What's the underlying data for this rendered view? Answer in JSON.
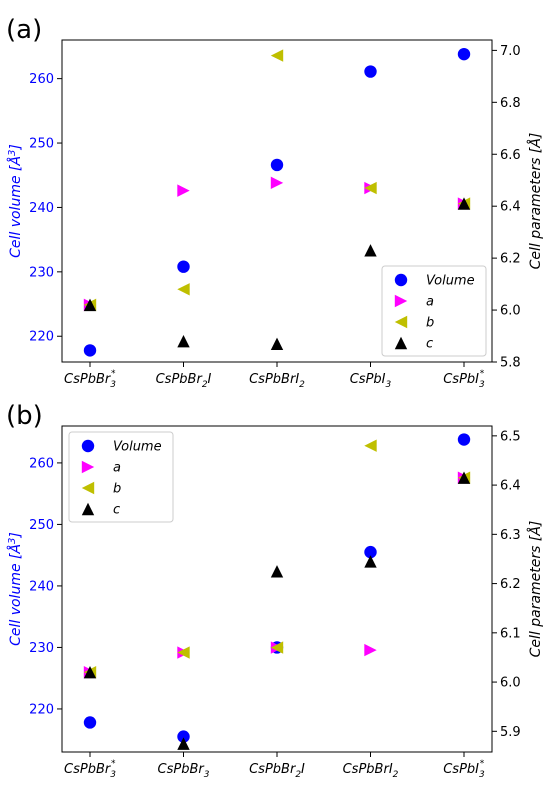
{
  "colors": {
    "volume": "#0000ff",
    "a": "#ff00ff",
    "b": "#bfbf00",
    "c": "#000000",
    "left_axis": "#0000ff",
    "right_axis": "#000000"
  },
  "chart_data": [
    {
      "type": "scatter",
      "panel_label": "(a)",
      "categories": [
        {
          "base": "CsPbBr",
          "sub": "3",
          "sup": "*"
        },
        {
          "base": "CsPbBr",
          "sub": "2",
          "tail": "I"
        },
        {
          "base": "CsPbBrI",
          "sub": "2"
        },
        {
          "base": "CsPbI",
          "sub": "3"
        },
        {
          "base": "CsPbI",
          "sub": "3",
          "sup": "*"
        }
      ],
      "ylabel_left": "Cell volume [Å³]",
      "ylabel_right": "Cell parameters [Å]",
      "ylim_left": [
        216.0,
        266.0
      ],
      "ylim_right": [
        5.8,
        7.04
      ],
      "yticks_left": [
        220,
        230,
        240,
        250,
        260
      ],
      "yticks_right": [
        5.8,
        6.0,
        6.2,
        6.4,
        6.6,
        6.8,
        7.0
      ],
      "legend_position": "bottom-right",
      "series": [
        {
          "name": "Volume",
          "axis": "left",
          "marker": "circle",
          "values": [
            217.8,
            230.8,
            246.6,
            261.1,
            263.8
          ]
        },
        {
          "name": "a",
          "axis": "right",
          "marker": "triangle-right",
          "values": [
            6.02,
            6.46,
            6.49,
            6.47,
            6.41
          ]
        },
        {
          "name": "b",
          "axis": "right",
          "marker": "triangle-left",
          "values": [
            6.02,
            6.08,
            6.98,
            6.47,
            6.41
          ]
        },
        {
          "name": "c",
          "axis": "right",
          "marker": "triangle-up",
          "values": [
            6.02,
            5.88,
            5.87,
            6.23,
            6.41
          ]
        }
      ]
    },
    {
      "type": "scatter",
      "panel_label": "(b)",
      "categories": [
        {
          "base": "CsPbBr",
          "sub": "3",
          "sup": "*"
        },
        {
          "base": "CsPbBr",
          "sub": "3"
        },
        {
          "base": "CsPbBr",
          "sub": "2",
          "tail": "I"
        },
        {
          "base": "CsPbBrI",
          "sub": "2"
        },
        {
          "base": "CsPbI",
          "sub": "3",
          "sup": "*"
        }
      ],
      "ylabel_left": "Cell volume [Å³]",
      "ylabel_right": "Cell parameters [Å]",
      "ylim_left": [
        213.0,
        266.0
      ],
      "ylim_right": [
        5.858,
        6.52
      ],
      "yticks_left": [
        220,
        230,
        240,
        250,
        260
      ],
      "yticks_right": [
        5.9,
        6.0,
        6.1,
        6.2,
        6.3,
        6.4,
        6.5
      ],
      "legend_position": "top-left",
      "series": [
        {
          "name": "Volume",
          "axis": "left",
          "marker": "circle",
          "values": [
            217.8,
            215.5,
            230.0,
            245.5,
            263.8
          ]
        },
        {
          "name": "a",
          "axis": "right",
          "marker": "triangle-right",
          "values": [
            6.02,
            6.06,
            6.07,
            6.065,
            6.415
          ]
        },
        {
          "name": "b",
          "axis": "right",
          "marker": "triangle-left",
          "values": [
            6.02,
            6.06,
            6.07,
            6.48,
            6.415
          ]
        },
        {
          "name": "c",
          "axis": "right",
          "marker": "triangle-up",
          "values": [
            6.02,
            5.875,
            6.225,
            6.245,
            6.415
          ]
        }
      ]
    }
  ]
}
